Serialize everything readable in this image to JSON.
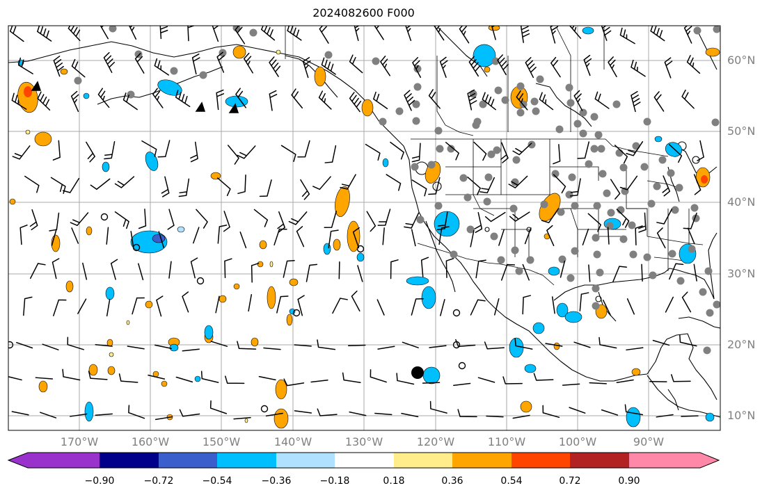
{
  "title": "2024082600 F000",
  "map": {
    "lat_labels": [
      "60°N",
      "50°N",
      "40°N",
      "30°N",
      "20°N",
      "10°N"
    ],
    "lon_labels": [
      "170°W",
      "160°W",
      "150°W",
      "140°W",
      "130°W",
      "120°W",
      "110°W",
      "100°W",
      "90°W"
    ],
    "grid": true,
    "label_color": "#808080"
  },
  "colorbar": {
    "ticks": [
      "−0.90",
      "−0.72",
      "−0.54",
      "−0.36",
      "−0.18",
      "0.18",
      "0.36",
      "0.54",
      "0.72",
      "0.90"
    ],
    "colors": [
      "#9932cc",
      "#00008b",
      "#3a5fcd",
      "#00bfff",
      "#b0e2ff",
      "#ffffff",
      "#ffec8b",
      "#ffa500",
      "#ff4500",
      "#b22222",
      "#ff88a8"
    ],
    "extend": "both"
  }
}
